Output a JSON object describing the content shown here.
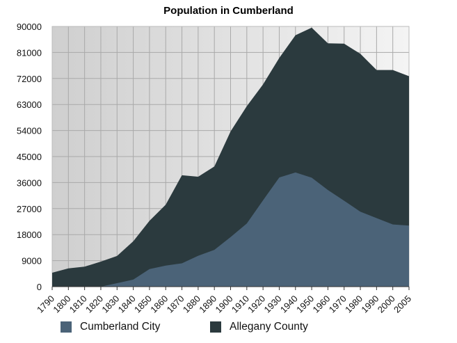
{
  "chart_data": {
    "type": "area",
    "title": "Population in Cumberland",
    "xlabel": "",
    "ylabel": "",
    "ylim": [
      0,
      90000
    ],
    "yticks": [
      "0",
      "9000",
      "18000",
      "27000",
      "36000",
      "45000",
      "54000",
      "63000",
      "72000",
      "81000",
      "90000"
    ],
    "grid": true,
    "legend_position": "bottom",
    "categories": [
      "1790",
      "1800",
      "1810",
      "1820",
      "1830",
      "1840",
      "1850",
      "1860",
      "1870",
      "1880",
      "1890",
      "1900",
      "1910",
      "1920",
      "1930",
      "1940",
      "1950",
      "1960",
      "1970",
      "1980",
      "1990",
      "2000",
      "2005"
    ],
    "series": [
      {
        "name": "Allegany County",
        "color": "#2b3a3e",
        "values": [
          4809,
          6303,
          6909,
          8654,
          10609,
          15690,
          22769,
          28348,
          38536,
          38012,
          41571,
          53694,
          62411,
          69938,
          79098,
          86973,
          89556,
          84169,
          84044,
          80548,
          74946,
          74930,
          72800
        ]
      },
      {
        "name": "Cumberland City",
        "color": "#4b6378",
        "values": [
          0,
          0,
          0,
          0,
          1200,
          2428,
          6073,
          7302,
          8056,
          10693,
          12729,
          17128,
          21839,
          29837,
          37747,
          39483,
          37679,
          33415,
          29724,
          25933,
          23706,
          21518,
          21100
        ]
      }
    ]
  }
}
